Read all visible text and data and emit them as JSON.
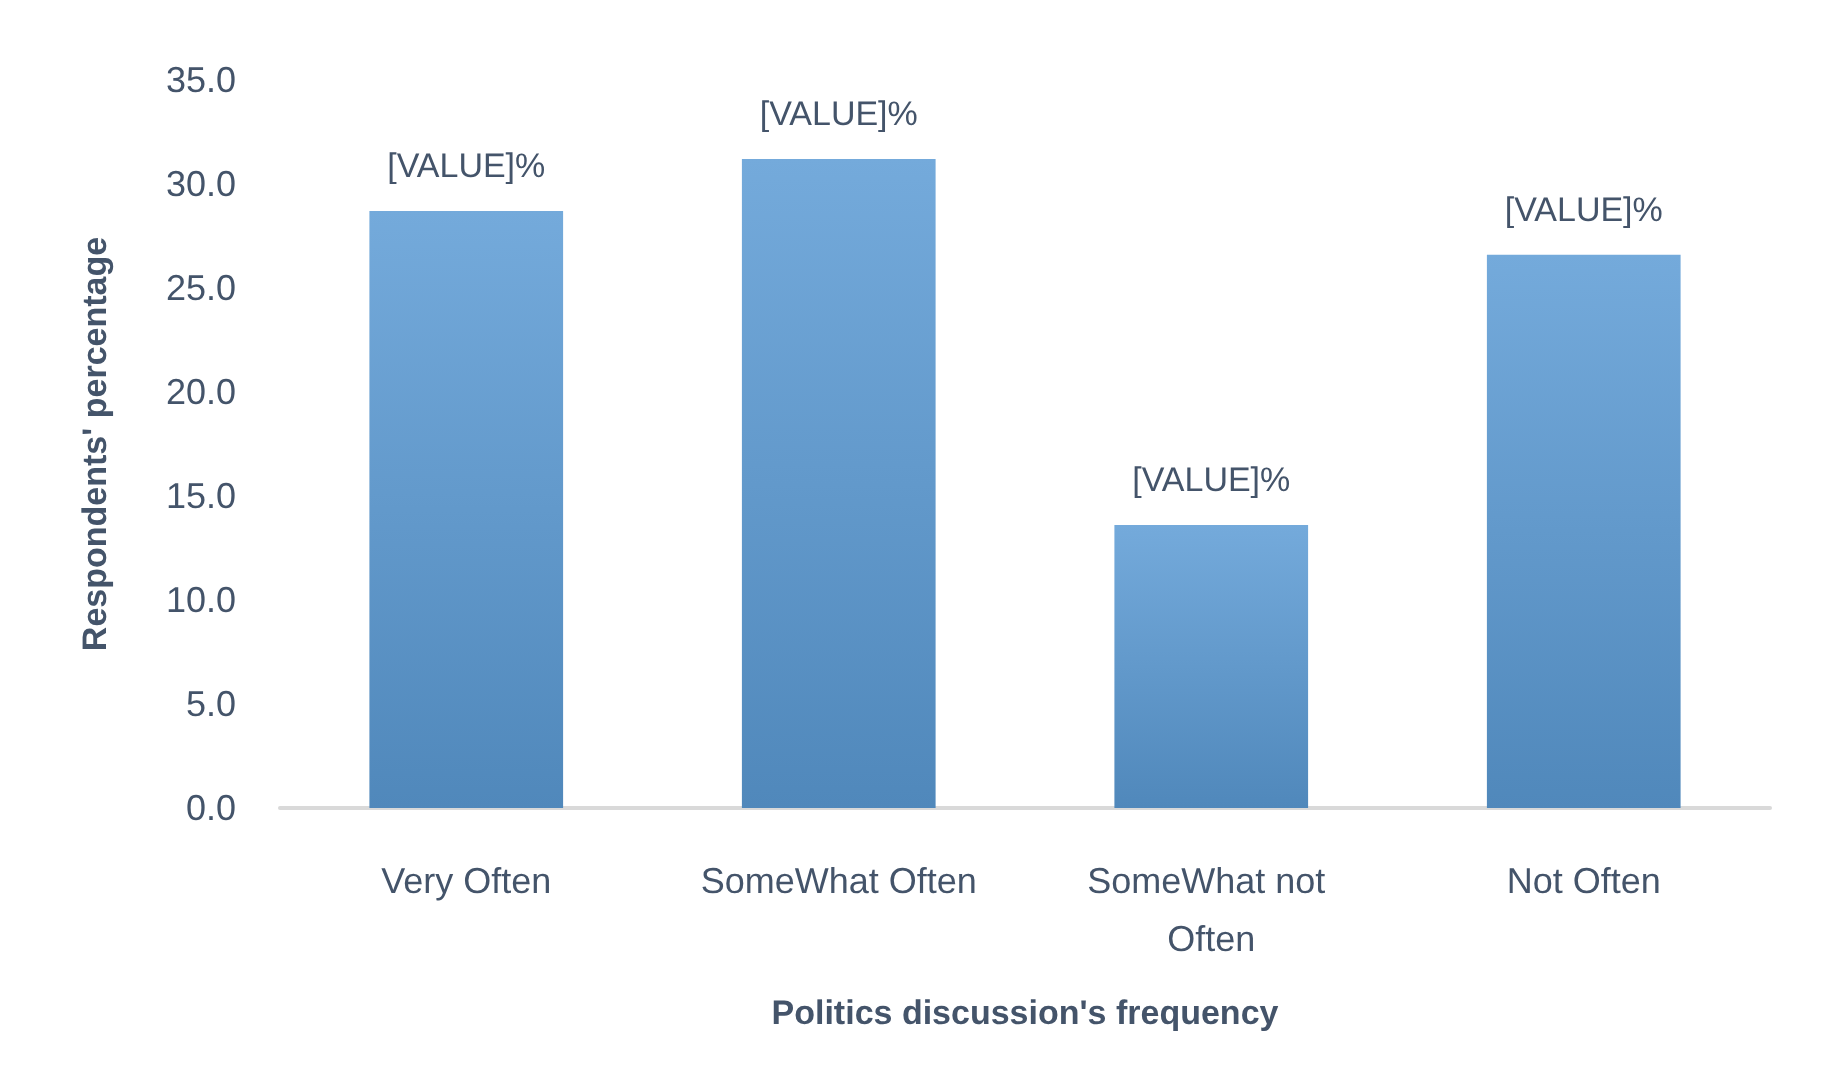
{
  "chart_data": {
    "type": "bar",
    "categories": [
      "Very Often",
      "SomeWhat Often",
      "SomeWhat not Often",
      "Not Often"
    ],
    "values": [
      28.7,
      31.2,
      13.6,
      26.6
    ],
    "color": "#5b9bd5",
    "value_labels": [
      "[VALUE]%",
      "[VALUE]%",
      "[VALUE]%",
      "[VALUE]%"
    ],
    "xlabel": "Politics discussion's frequency",
    "ylabel": "Respondents' percentage",
    "ylim": [
      0,
      35
    ],
    "yticks": [
      {
        "value": 0,
        "label": "0.0"
      },
      {
        "value": 5,
        "label": "5.0"
      },
      {
        "value": 10,
        "label": "10.0"
      },
      {
        "value": 15,
        "label": "15.0"
      },
      {
        "value": 20,
        "label": "20.0"
      },
      {
        "value": 25,
        "label": "25.0"
      },
      {
        "value": 30,
        "label": "30.0"
      },
      {
        "value": 35,
        "label": "35.0"
      }
    ]
  }
}
